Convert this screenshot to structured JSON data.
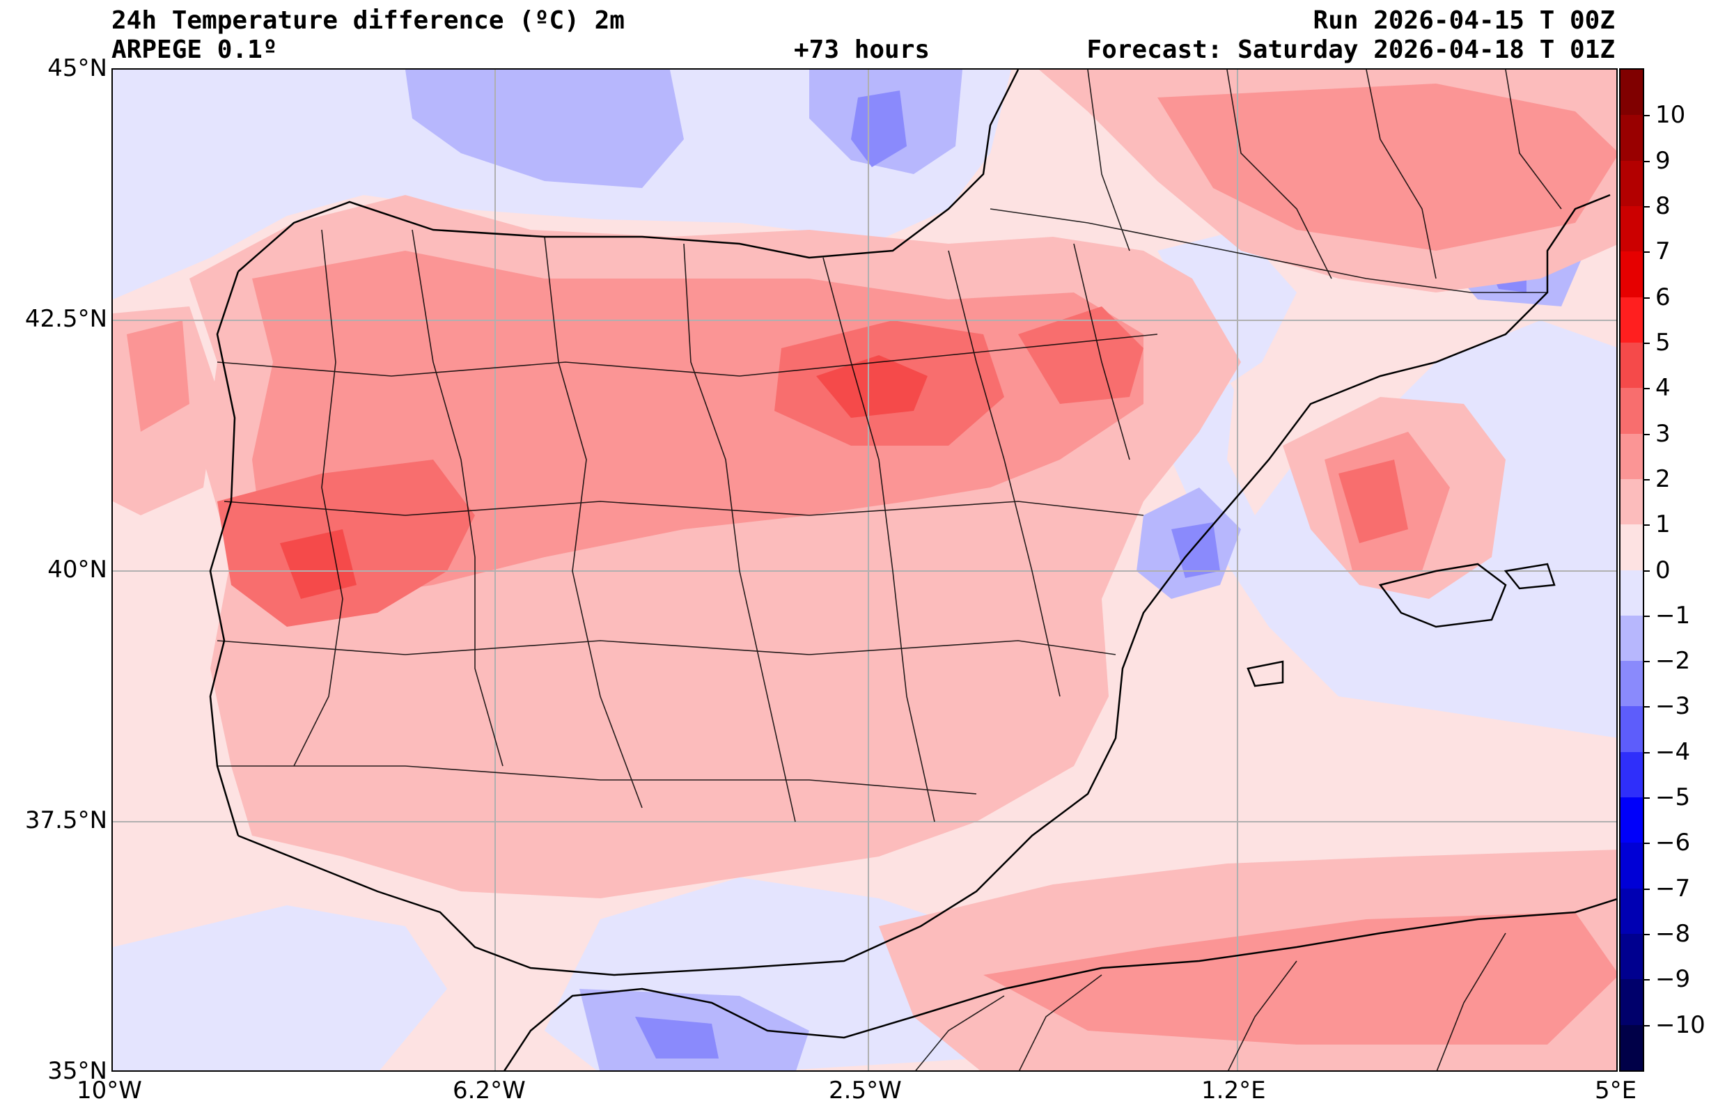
{
  "header": {
    "title": "24h Temperature difference (ºC) 2m",
    "model": "ARPEGE 0.1º",
    "lead_time": "+73 hours",
    "run": "Run 2026-04-15 T 00Z",
    "forecast": "Forecast: Saturday 2026-04-18 T 01Z"
  },
  "map": {
    "lat_labels": [
      "45°N",
      "42.5°N",
      "40°N",
      "37.5°N",
      "35°N"
    ],
    "lon_labels": [
      "10°W",
      "6.2°W",
      "2.5°W",
      "1.2°E",
      "5°E"
    ]
  },
  "colorbar": {
    "ticks": [
      "10",
      "9",
      "8",
      "7",
      "6",
      "5",
      "4",
      "3",
      "2",
      "1",
      "0",
      "−1",
      "−2",
      "−3",
      "−4",
      "−5",
      "−6",
      "−7",
      "−8",
      "−9",
      "−10"
    ],
    "colors": {
      "warm": [
        "#fde2e2",
        "#fcbcbc",
        "#fb9595",
        "#f86e6e",
        "#f54a4a",
        "#ff1f1f",
        "#e60000",
        "#cc0000",
        "#b30000",
        "#990000",
        "#800000"
      ],
      "cool": [
        "#e4e4fe",
        "#b7b7fd",
        "#8a8afc",
        "#5d5dfb",
        "#2f2ffa",
        "#0000fa",
        "#0000d6",
        "#0000b3",
        "#00008f",
        "#00006b",
        "#000048"
      ]
    }
  }
}
